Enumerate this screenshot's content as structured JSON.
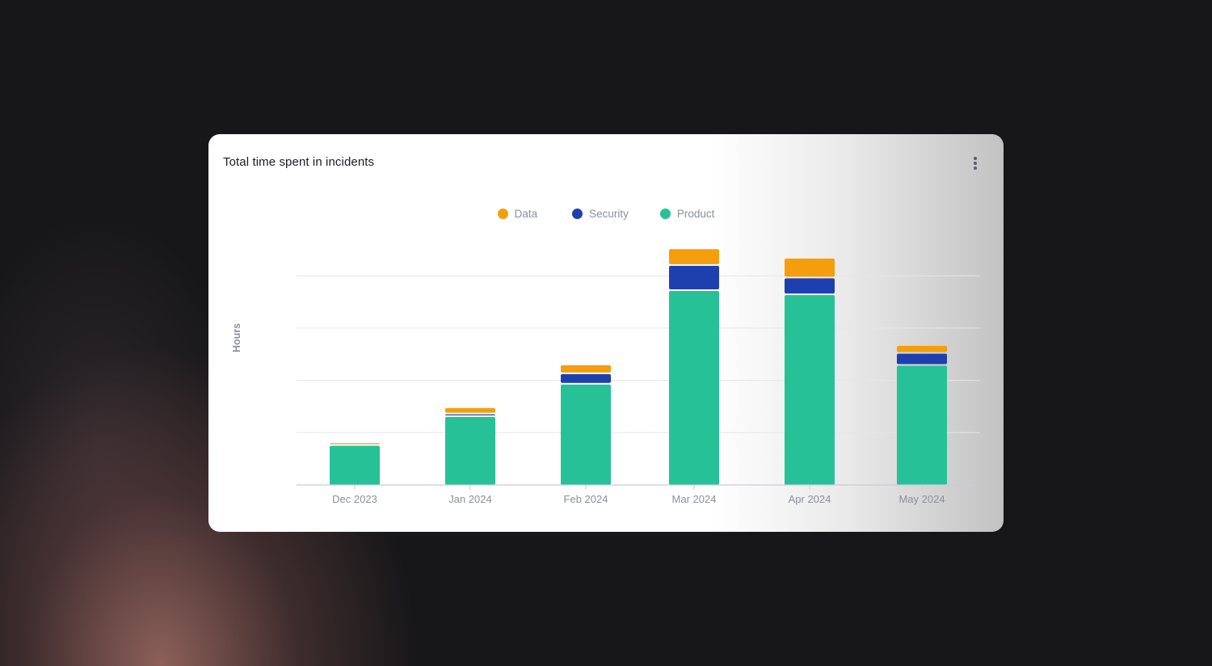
{
  "card": {
    "title": "Total time spent in incidents",
    "menu_icon": "more-vertical-icon"
  },
  "colors": {
    "Data": "#f59e0b",
    "Security": "#1e40af",
    "Product": "#26c197",
    "grid": "#e4e6ea",
    "axis": "#c9ccd6",
    "tick_label": "#8a8f9c"
  },
  "chart_data": {
    "type": "bar",
    "stacked": true,
    "title": "Total time spent in incidents",
    "xlabel": "",
    "ylabel": "Hours",
    "ylim": [
      0,
      5
    ],
    "grid": true,
    "legend": "top-center",
    "categories": [
      "Dec 2023",
      "Jan 2024",
      "Feb 2024",
      "Mar 2024",
      "Apr 2024",
      "May 2024"
    ],
    "series": [
      {
        "name": "Product",
        "values": [
          0.75,
          1.3,
          1.92,
          3.71,
          3.63,
          2.28
        ]
      },
      {
        "name": "Security",
        "values": [
          0.0,
          0.05,
          0.2,
          0.48,
          0.32,
          0.23
        ]
      },
      {
        "name": "Data",
        "values": [
          0.05,
          0.12,
          0.17,
          0.32,
          0.38,
          0.15
        ]
      }
    ]
  }
}
